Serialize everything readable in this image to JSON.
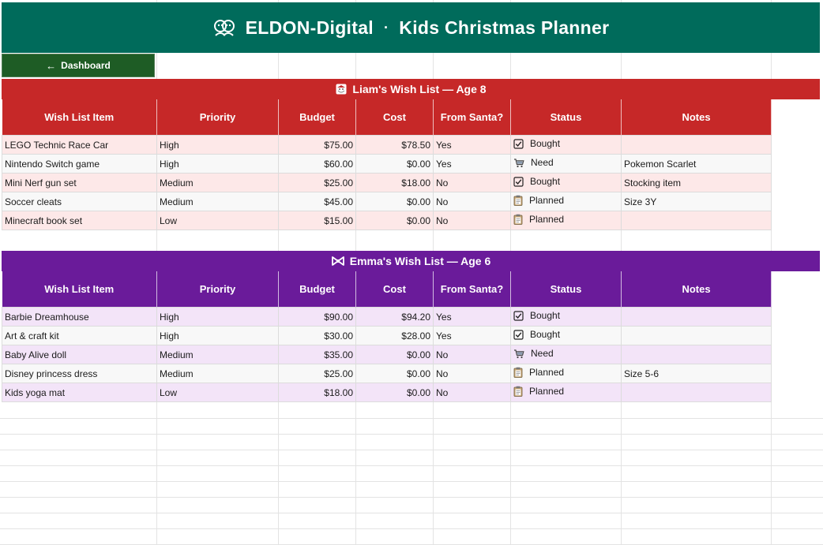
{
  "header": {
    "brand": "ELDON-Digital",
    "separator": "·",
    "title": "Kids Christmas Planner",
    "icon": "kids-faces-icon"
  },
  "nav": {
    "dashboard_label": "Dashboard",
    "icon": "left-arrow-icon"
  },
  "columns": [
    "Wish List Item",
    "Priority",
    "Budget",
    "Cost",
    "From Santa?",
    "Status",
    "Notes"
  ],
  "liam": {
    "title": "Liam's Wish List — Age 8",
    "icon": "santa-icon",
    "color": "#c62828",
    "rows": [
      {
        "item": "LEGO Technic Race Car",
        "priority": "High",
        "budget": "$75.00",
        "cost": "$78.50",
        "santa": "Yes",
        "status": "Bought",
        "status_icon": "check-box-icon",
        "notes": ""
      },
      {
        "item": "Nintendo Switch game",
        "priority": "High",
        "budget": "$60.00",
        "cost": "$0.00",
        "santa": "Yes",
        "status": "Need",
        "status_icon": "cart-icon",
        "notes": "Pokemon Scarlet"
      },
      {
        "item": "Mini Nerf gun set",
        "priority": "Medium",
        "budget": "$25.00",
        "cost": "$18.00",
        "santa": "No",
        "status": "Bought",
        "status_icon": "check-box-icon",
        "notes": "Stocking item"
      },
      {
        "item": "Soccer cleats",
        "priority": "Medium",
        "budget": "$45.00",
        "cost": "$0.00",
        "santa": "No",
        "status": "Planned",
        "status_icon": "clipboard-icon",
        "notes": "Size 3Y"
      },
      {
        "item": "Minecraft book set",
        "priority": "Low",
        "budget": "$15.00",
        "cost": "$0.00",
        "santa": "No",
        "status": "Planned",
        "status_icon": "clipboard-icon",
        "notes": ""
      }
    ]
  },
  "emma": {
    "title": "Emma's Wish List — Age 6",
    "icon": "bow-icon",
    "color": "#6a1b9a",
    "rows": [
      {
        "item": "Barbie Dreamhouse",
        "priority": "High",
        "budget": "$90.00",
        "cost": "$94.20",
        "santa": "Yes",
        "status": "Bought",
        "status_icon": "check-box-icon",
        "notes": ""
      },
      {
        "item": "Art & craft kit",
        "priority": "High",
        "budget": "$30.00",
        "cost": "$28.00",
        "santa": "Yes",
        "status": "Bought",
        "status_icon": "check-box-icon",
        "notes": ""
      },
      {
        "item": "Baby Alive doll",
        "priority": "Medium",
        "budget": "$35.00",
        "cost": "$0.00",
        "santa": "No",
        "status": "Need",
        "status_icon": "cart-icon",
        "notes": ""
      },
      {
        "item": "Disney princess dress",
        "priority": "Medium",
        "budget": "$25.00",
        "cost": "$0.00",
        "santa": "No",
        "status": "Planned",
        "status_icon": "clipboard-icon",
        "notes": "Size 5-6"
      },
      {
        "item": "Kids yoga mat",
        "priority": "Low",
        "budget": "$18.00",
        "cost": "$0.00",
        "santa": "No",
        "status": "Planned",
        "status_icon": "clipboard-icon",
        "notes": ""
      }
    ]
  }
}
